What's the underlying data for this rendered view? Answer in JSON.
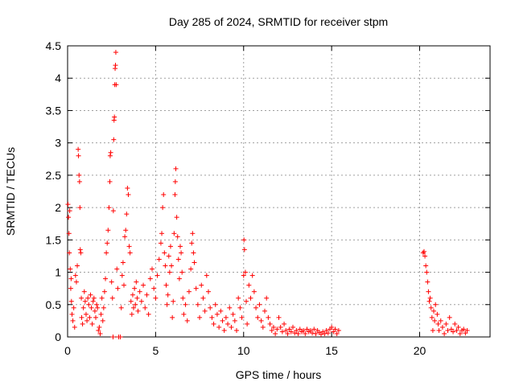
{
  "chart_data": {
    "type": "scatter",
    "title": "Day 285 of 2024, SRMTID for receiver stpm",
    "xlabel": "GPS time / hours",
    "ylabel": "SRMTID / TECUs",
    "xlim": [
      0,
      24
    ],
    "ylim": [
      0,
      4.5
    ],
    "xticks": [
      0,
      5,
      10,
      15,
      20
    ],
    "xtick_labels": [
      "0",
      "5",
      "10",
      "15",
      "20"
    ],
    "yticks": [
      0,
      0.5,
      1,
      1.5,
      2,
      2.5,
      3,
      3.5,
      4,
      4.5
    ],
    "ytick_labels": [
      "0",
      "0.5",
      "1",
      "1.5",
      "2",
      "2.5",
      "3",
      "3.5",
      "4",
      "4.5"
    ],
    "grid": true,
    "marker": "+",
    "color": "#ff0000",
    "series": [
      {
        "name": "SRMTID",
        "points": [
          [
            0.02,
            2.05
          ],
          [
            0.05,
            1.85
          ],
          [
            0.08,
            1.6
          ],
          [
            0.1,
            1.3
          ],
          [
            0.12,
            1.95
          ],
          [
            0.15,
            1.05
          ],
          [
            0.18,
            0.75
          ],
          [
            0.2,
            0.9
          ],
          [
            0.22,
            0.55
          ],
          [
            0.25,
            0.35
          ],
          [
            0.3,
            0.25
          ],
          [
            0.35,
            0.45
          ],
          [
            0.4,
            0.15
          ],
          [
            0.45,
            0.95
          ],
          [
            0.5,
            0.85
          ],
          [
            0.55,
            1.1
          ],
          [
            0.6,
            2.9
          ],
          [
            0.62,
            2.8
          ],
          [
            0.65,
            2.5
          ],
          [
            0.68,
            2.4
          ],
          [
            0.7,
            2.0
          ],
          [
            0.72,
            1.35
          ],
          [
            0.75,
            1.3
          ],
          [
            0.78,
            0.6
          ],
          [
            0.8,
            0.3
          ],
          [
            0.85,
            0.2
          ],
          [
            0.9,
            0.45
          ],
          [
            0.95,
            0.7
          ],
          [
            1.0,
            0.55
          ],
          [
            1.05,
            0.35
          ],
          [
            1.1,
            0.25
          ],
          [
            1.15,
            0.6
          ],
          [
            1.2,
            0.5
          ],
          [
            1.25,
            0.3
          ],
          [
            1.3,
            0.65
          ],
          [
            1.35,
            0.45
          ],
          [
            1.4,
            0.2
          ],
          [
            1.45,
            0.55
          ],
          [
            1.5,
            0.6
          ],
          [
            1.55,
            0.4
          ],
          [
            1.6,
            0.3
          ],
          [
            1.65,
            0.5
          ],
          [
            1.7,
            0.45
          ],
          [
            1.75,
            0.1
          ],
          [
            1.8,
            0.15
          ],
          [
            1.85,
            0.05
          ],
          [
            1.9,
            0.35
          ],
          [
            1.95,
            0.6
          ],
          [
            2.0,
            0.25
          ],
          [
            2.05,
            0.45
          ],
          [
            2.1,
            0.7
          ],
          [
            2.15,
            0.9
          ],
          [
            2.2,
            1.3
          ],
          [
            2.25,
            1.45
          ],
          [
            2.3,
            1.65
          ],
          [
            2.35,
            2.0
          ],
          [
            2.4,
            2.4
          ],
          [
            2.42,
            2.8
          ],
          [
            2.45,
            2.85
          ],
          [
            2.5,
            0.85
          ],
          [
            2.55,
            0.6
          ],
          [
            2.58,
            0.0
          ],
          [
            2.6,
            1.95
          ],
          [
            2.62,
            3.05
          ],
          [
            2.64,
            3.35
          ],
          [
            2.66,
            3.4
          ],
          [
            2.68,
            3.9
          ],
          [
            2.7,
            4.15
          ],
          [
            2.72,
            4.2
          ],
          [
            2.74,
            4.4
          ],
          [
            2.76,
            3.9
          ],
          [
            2.8,
            1.05
          ],
          [
            2.85,
            0.75
          ],
          [
            2.9,
            0.0
          ],
          [
            3.0,
            0.0
          ],
          [
            3.05,
            0.45
          ],
          [
            3.1,
            0.95
          ],
          [
            3.15,
            1.15
          ],
          [
            3.2,
            0.8
          ],
          [
            3.25,
            1.55
          ],
          [
            3.3,
            1.65
          ],
          [
            3.35,
            1.9
          ],
          [
            3.4,
            2.3
          ],
          [
            3.45,
            2.2
          ],
          [
            3.5,
            1.4
          ],
          [
            3.55,
            1.3
          ],
          [
            3.6,
            0.55
          ],
          [
            3.65,
            0.35
          ],
          [
            3.7,
            0.65
          ],
          [
            3.75,
            0.45
          ],
          [
            3.8,
            0.75
          ],
          [
            3.85,
            0.5
          ],
          [
            3.9,
            0.85
          ],
          [
            3.95,
            0.6
          ],
          [
            4.0,
            0.4
          ],
          [
            4.1,
            0.7
          ],
          [
            4.2,
            0.55
          ],
          [
            4.3,
            0.8
          ],
          [
            4.4,
            0.45
          ],
          [
            4.5,
            0.65
          ],
          [
            4.6,
            0.35
          ],
          [
            4.7,
            0.9
          ],
          [
            4.8,
            1.05
          ],
          [
            4.9,
            0.75
          ],
          [
            5.0,
            0.6
          ],
          [
            5.1,
            0.95
          ],
          [
            5.2,
            1.2
          ],
          [
            5.3,
            1.45
          ],
          [
            5.35,
            1.6
          ],
          [
            5.4,
            2.0
          ],
          [
            5.45,
            2.2
          ],
          [
            5.5,
            1.3
          ],
          [
            5.55,
            1.1
          ],
          [
            5.6,
            0.8
          ],
          [
            5.65,
            0.5
          ],
          [
            5.7,
            0.65
          ],
          [
            5.75,
            1.25
          ],
          [
            5.8,
            1.0
          ],
          [
            5.85,
            1.4
          ],
          [
            5.9,
            1.1
          ],
          [
            5.95,
            0.3
          ],
          [
            6.0,
            0.55
          ],
          [
            6.05,
            1.6
          ],
          [
            6.1,
            2.2
          ],
          [
            6.12,
            2.4
          ],
          [
            6.15,
            2.6
          ],
          [
            6.2,
            1.85
          ],
          [
            6.25,
            1.55
          ],
          [
            6.3,
            1.2
          ],
          [
            6.35,
            0.9
          ],
          [
            6.4,
            1.4
          ],
          [
            6.45,
            1.3
          ],
          [
            6.5,
            1.0
          ],
          [
            6.55,
            0.6
          ],
          [
            6.6,
            0.35
          ],
          [
            6.7,
            0.5
          ],
          [
            6.8,
            0.25
          ],
          [
            6.9,
            0.7
          ],
          [
            7.0,
            1.05
          ],
          [
            7.05,
            1.45
          ],
          [
            7.1,
            1.6
          ],
          [
            7.15,
            1.3
          ],
          [
            7.2,
            1.15
          ],
          [
            7.3,
            0.75
          ],
          [
            7.4,
            0.5
          ],
          [
            7.5,
            0.3
          ],
          [
            7.6,
            0.8
          ],
          [
            7.7,
            0.6
          ],
          [
            7.8,
            0.4
          ],
          [
            7.9,
            0.95
          ],
          [
            8.0,
            0.7
          ],
          [
            8.1,
            0.45
          ],
          [
            8.2,
            0.3
          ],
          [
            8.3,
            0.2
          ],
          [
            8.4,
            0.5
          ],
          [
            8.5,
            0.35
          ],
          [
            8.6,
            0.15
          ],
          [
            8.7,
            0.4
          ],
          [
            8.8,
            0.25
          ],
          [
            8.9,
            0.1
          ],
          [
            9.0,
            0.3
          ],
          [
            9.1,
            0.2
          ],
          [
            9.2,
            0.45
          ],
          [
            9.3,
            0.15
          ],
          [
            9.4,
            0.35
          ],
          [
            9.5,
            0.25
          ],
          [
            9.6,
            0.1
          ],
          [
            9.7,
            0.6
          ],
          [
            9.8,
            0.45
          ],
          [
            9.9,
            0.3
          ],
          [
            10.0,
            0.95
          ],
          [
            10.02,
            1.5
          ],
          [
            10.05,
            1.35
          ],
          [
            10.1,
            1.0
          ],
          [
            10.15,
            0.55
          ],
          [
            10.2,
            0.2
          ],
          [
            10.3,
            0.8
          ],
          [
            10.4,
            0.6
          ],
          [
            10.5,
            0.95
          ],
          [
            10.6,
            0.7
          ],
          [
            10.7,
            0.45
          ],
          [
            10.8,
            0.3
          ],
          [
            10.9,
            0.5
          ],
          [
            11.0,
            0.25
          ],
          [
            11.1,
            0.15
          ],
          [
            11.2,
            0.4
          ],
          [
            11.3,
            0.6
          ],
          [
            11.4,
            0.3
          ],
          [
            11.5,
            0.2
          ],
          [
            11.6,
            0.1
          ],
          [
            11.7,
            0.15
          ],
          [
            11.8,
            0.05
          ],
          [
            11.9,
            0.12
          ],
          [
            12.0,
            0.3
          ],
          [
            12.1,
            0.15
          ],
          [
            12.2,
            0.08
          ],
          [
            12.3,
            0.2
          ],
          [
            12.4,
            0.1
          ],
          [
            12.5,
            0.05
          ],
          [
            12.6,
            0.12
          ],
          [
            12.7,
            0.08
          ],
          [
            12.8,
            0.15
          ],
          [
            12.9,
            0.06
          ],
          [
            13.0,
            0.1
          ],
          [
            13.1,
            0.05
          ],
          [
            13.2,
            0.12
          ],
          [
            13.3,
            0.08
          ],
          [
            13.4,
            0.1
          ],
          [
            13.5,
            0.05
          ],
          [
            13.6,
            0.12
          ],
          [
            13.7,
            0.08
          ],
          [
            13.8,
            0.1
          ],
          [
            13.9,
            0.06
          ],
          [
            14.0,
            0.12
          ],
          [
            14.1,
            0.05
          ],
          [
            14.2,
            0.1
          ],
          [
            14.3,
            0.07
          ],
          [
            14.4,
            0.04
          ],
          [
            14.5,
            0.08
          ],
          [
            14.6,
            0.05
          ],
          [
            14.7,
            0.1
          ],
          [
            14.8,
            0.06
          ],
          [
            14.9,
            0.12
          ],
          [
            15.0,
            0.15
          ],
          [
            15.1,
            0.08
          ],
          [
            15.2,
            0.12
          ],
          [
            15.3,
            0.05
          ],
          [
            15.4,
            0.1
          ],
          [
            20.2,
            1.3
          ],
          [
            20.25,
            1.32
          ],
          [
            20.3,
            1.25
          ],
          [
            20.35,
            1.1
          ],
          [
            20.4,
            1.0
          ],
          [
            20.45,
            0.85
          ],
          [
            20.5,
            0.7
          ],
          [
            20.55,
            0.55
          ],
          [
            20.6,
            0.6
          ],
          [
            20.65,
            0.45
          ],
          [
            20.7,
            0.3
          ],
          [
            20.75,
            0.1
          ],
          [
            20.8,
            0.4
          ],
          [
            20.85,
            0.25
          ],
          [
            20.9,
            0.5
          ],
          [
            21.0,
            0.35
          ],
          [
            21.05,
            0.2
          ],
          [
            21.1,
            0.1
          ],
          [
            21.2,
            0.25
          ],
          [
            21.3,
            0.15
          ],
          [
            21.4,
            0.05
          ],
          [
            21.5,
            0.2
          ],
          [
            21.6,
            0.1
          ],
          [
            21.7,
            0.3
          ],
          [
            21.8,
            0.12
          ],
          [
            21.9,
            0.08
          ],
          [
            22.0,
            0.2
          ],
          [
            22.1,
            0.1
          ],
          [
            22.2,
            0.15
          ],
          [
            22.3,
            0.05
          ],
          [
            22.4,
            0.1
          ],
          [
            22.5,
            0.12
          ],
          [
            22.6,
            0.06
          ],
          [
            22.7,
            0.1
          ]
        ]
      }
    ]
  }
}
